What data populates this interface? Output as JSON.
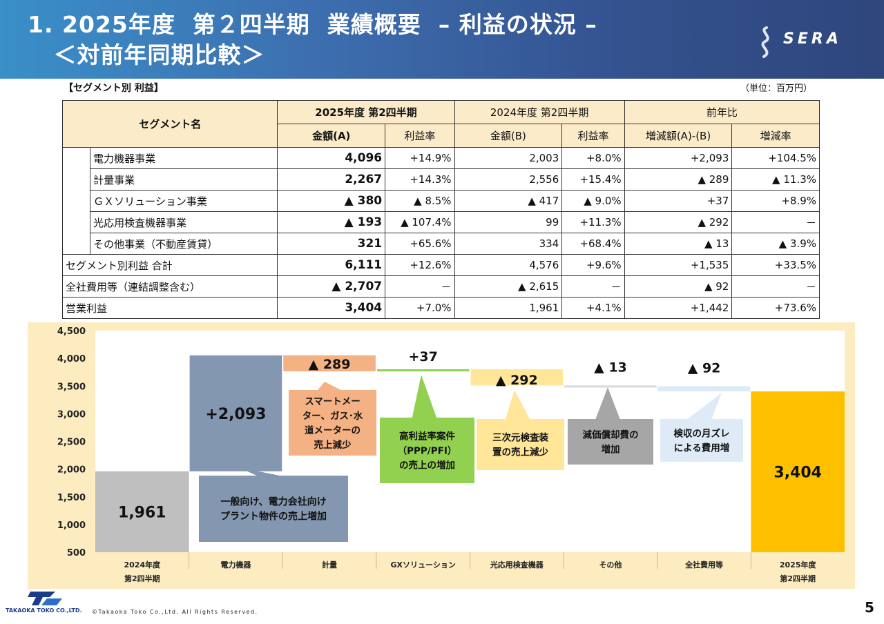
{
  "header": {
    "title_line1": "1. 2025年度  第２四半期  業績概要  – 利益の状況 –",
    "title_line2": "   ＜対前年同期比較＞",
    "logo": "SERA"
  },
  "section_title": "【セグメント別  利益】",
  "unit_note": "（単位：百万円）",
  "table": {
    "col_segment": "セグメント名",
    "group_2025": "2025年度  第2四半期",
    "group_2024": "2024年度  第2四半期",
    "group_yoy": "前年比",
    "sub_amount_a": "金額(A)",
    "sub_margin": "利益率",
    "sub_amount_b": "金額(B)",
    "sub_diff": "増減額(A)-(B)",
    "sub_rate": "増減率",
    "segments": [
      {
        "name": "電力機器事業",
        "a": "4,096",
        "ma": "+14.9%",
        "b": "2,003",
        "mb": "+8.0%",
        "diff": "+2,093",
        "rate": "+104.5%"
      },
      {
        "name": "計量事業",
        "a": "2,267",
        "ma": "+14.3%",
        "b": "2,556",
        "mb": "+15.4%",
        "diff": "▲ 289",
        "rate": "▲ 11.3%"
      },
      {
        "name": "ＧＸソリューション事業",
        "a": "▲ 380",
        "ma": "▲ 8.5%",
        "b": "▲ 417",
        "mb": "▲ 9.0%",
        "diff": "+37",
        "rate": "+8.9%"
      },
      {
        "name": "光応用検査機器事業",
        "a": "▲ 193",
        "ma": "▲ 107.4%",
        "b": "99",
        "mb": "+11.3%",
        "diff": "▲ 292",
        "rate": "－"
      },
      {
        "name": "その他事業（不動産賃貸）",
        "a": "321",
        "ma": "+65.6%",
        "b": "334",
        "mb": "+68.4%",
        "diff": "▲ 13",
        "rate": "▲ 3.9%"
      }
    ],
    "subtotal": {
      "name": "セグメント別利益 合計",
      "a": "6,111",
      "ma": "+12.6%",
      "b": "4,576",
      "mb": "+9.6%",
      "diff": "+1,535",
      "rate": "+33.5%"
    },
    "corporate": {
      "name": "全社費用等（連結調整含む）",
      "a": "▲ 2,707",
      "ma": "－",
      "b": "▲ 2,615",
      "mb": "－",
      "diff": "▲ 92",
      "rate": "－"
    },
    "operating": {
      "name": "営業利益",
      "a": "3,404",
      "ma": "+7.0%",
      "b": "1,961",
      "mb": "+4.1%",
      "diff": "+1,442",
      "rate": "+73.6%"
    }
  },
  "chart_data": {
    "type": "bar",
    "subtype": "waterfall",
    "ylim": [
      500,
      4500
    ],
    "yticks": [
      "4,500",
      "4,000",
      "3,500",
      "3,000",
      "2,500",
      "2,000",
      "1,500",
      "1,000",
      "500"
    ],
    "ytick_values": [
      4500,
      4000,
      3500,
      3000,
      2500,
      2000,
      1500,
      1000,
      500
    ],
    "categories": [
      "2024年度\n第2四半期",
      "電力機器",
      "計量",
      "GXソリューション",
      "光応用検査機器",
      "その他",
      "全社費用等",
      "2025年度\n第2四半期"
    ],
    "bars": [
      {
        "label": "1,961",
        "start": 0,
        "end": 1961,
        "color": "#bfbfbf",
        "kind": "total"
      },
      {
        "label": "+2,093",
        "start": 1961,
        "end": 4054,
        "color": "#8497b0",
        "kind": "delta"
      },
      {
        "label": "▲ 289",
        "start": 4054,
        "end": 3765,
        "color": "#f4b183",
        "kind": "delta"
      },
      {
        "label": "+37",
        "start": 3765,
        "end": 3802,
        "color": "#8fd14f",
        "kind": "delta"
      },
      {
        "label": "▲ 292",
        "start": 3802,
        "end": 3510,
        "color": "#ffe699",
        "kind": "delta"
      },
      {
        "label": "▲ 13",
        "start": 3510,
        "end": 3497,
        "color": "#d9d9d9",
        "kind": "delta"
      },
      {
        "label": "▲ 92",
        "start": 3497,
        "end": 3405,
        "color": "#deebf7",
        "kind": "delta"
      },
      {
        "label": "3,404",
        "start": 0,
        "end": 3404,
        "color": "#ffc000",
        "kind": "total"
      }
    ],
    "callouts": [
      {
        "text": "一般向け、電力会社向け\nプラント物件の売上増加",
        "bar": 1,
        "color": "#8497b0"
      },
      {
        "text": "スマートメー\nター、ガス･水\n道メーターの\n売上減少",
        "bar": 2,
        "color": "#f4b183"
      },
      {
        "text": "高利益率案件\n（PPP/PFI）\nの売上の増加",
        "bar": 3,
        "color": "#92d050"
      },
      {
        "text": "三次元検査装\n置の売上減少",
        "bar": 4,
        "color": "#ffe699"
      },
      {
        "text": "減価償却費の\n増加",
        "bar": 5,
        "color": "#a6a6a6"
      },
      {
        "text": "検収の月ズレ\nによる費用増",
        "bar": 6,
        "color": "#deebf7"
      }
    ]
  },
  "footer": {
    "company": "TAKAOKA TOKO CO.,LTD.",
    "copyright": "©Takaoka Toko Co.,Ltd. All Rights Reserved.",
    "page": "5"
  }
}
